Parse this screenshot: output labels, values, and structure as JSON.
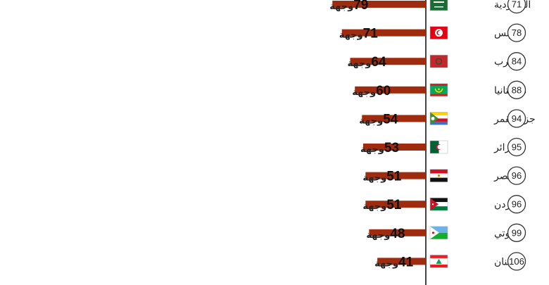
{
  "chart_data": {
    "type": "bar",
    "orientation": "horizontal-right-to-left",
    "value_unit": "وجهة",
    "bar_color": "#a02c0f",
    "axis_color": "#444444",
    "xlim": [
      0,
      130
    ],
    "rows": [
      {
        "rank": "71",
        "country": "السعودية",
        "value": 79,
        "flag": "saudi-arabia-flag"
      },
      {
        "rank": "78",
        "country": "تونس",
        "value": 71,
        "flag": "tunisia-flag"
      },
      {
        "rank": "84",
        "country": "المغرب",
        "value": 64,
        "flag": "morocco-flag"
      },
      {
        "rank": "88",
        "country": "موريتانيا",
        "value": 60,
        "flag": "mauritania-flag"
      },
      {
        "rank": "94",
        "country": "جزر القمر",
        "value": 54,
        "flag": "comoros-flag"
      },
      {
        "rank": "95",
        "country": "الجزائر",
        "value": 53,
        "flag": "algeria-flag"
      },
      {
        "rank": "96",
        "country": "مصر",
        "value": 51,
        "flag": "egypt-flag"
      },
      {
        "rank": "96",
        "country": "الأردن",
        "value": 51,
        "flag": "jordan-flag"
      },
      {
        "rank": "99",
        "country": "جيبوتي",
        "value": 48,
        "flag": "djibouti-flag"
      },
      {
        "rank": "106",
        "country": "لبنان",
        "value": 41,
        "flag": "lebanon-flag"
      }
    ]
  }
}
